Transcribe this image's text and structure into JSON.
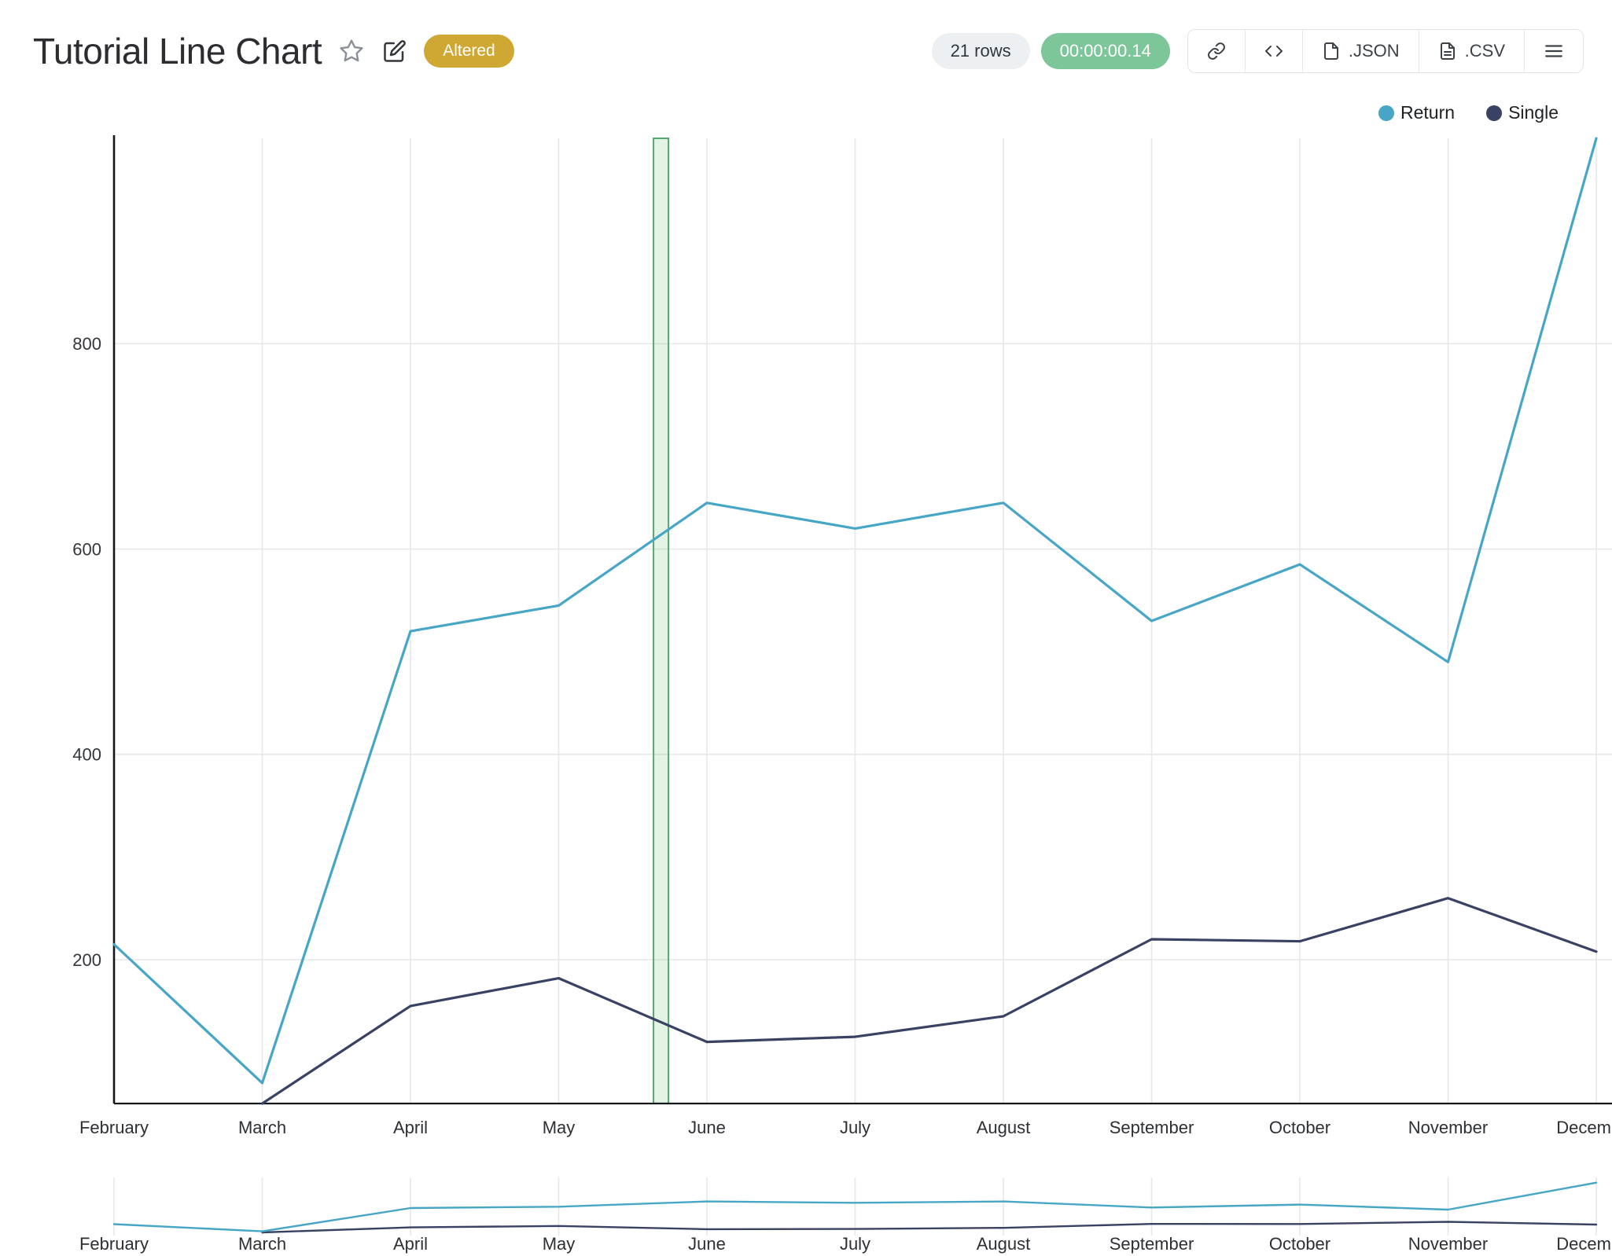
{
  "header": {
    "title": "Tutorial Line Chart",
    "altered_badge": "Altered",
    "rows_count": "21 rows",
    "timer": "00:00:00.14",
    "export_json_label": ".JSON",
    "export_csv_label": ".CSV",
    "icons": {
      "favorite": "star-outline",
      "edit": "pencil-square",
      "share": "link",
      "embed": "code-brackets",
      "export_json": "file-code",
      "export_csv": "file-text",
      "menu": "hamburger"
    }
  },
  "chart_data": {
    "type": "line",
    "title": "Tutorial Line Chart",
    "xlabel": "",
    "ylabel": "",
    "categories": [
      "February",
      "March",
      "April",
      "May",
      "June",
      "July",
      "August",
      "September",
      "October",
      "November",
      "December"
    ],
    "series": [
      {
        "name": "Return",
        "color": "#47a6c6",
        "values": [
          215,
          80,
          520,
          545,
          645,
          620,
          645,
          530,
          585,
          490,
          1000
        ]
      },
      {
        "name": "Single",
        "color": "#3a4264",
        "values": [
          null,
          60,
          155,
          182,
          120,
          125,
          145,
          220,
          218,
          260,
          208
        ]
      }
    ],
    "y_ticks": [
      200,
      400,
      600,
      800
    ],
    "y_domain": [
      60,
      1000
    ],
    "grid": true,
    "legend_position": "top-right",
    "annotation": {
      "type": "vertical-band",
      "x_index": 3.69,
      "width": 19,
      "fill": "#81c784",
      "fill_opacity": 0.22,
      "stroke": "#57a773"
    },
    "mini_chart": {
      "present": true,
      "y_domain": [
        0,
        1100
      ]
    }
  }
}
